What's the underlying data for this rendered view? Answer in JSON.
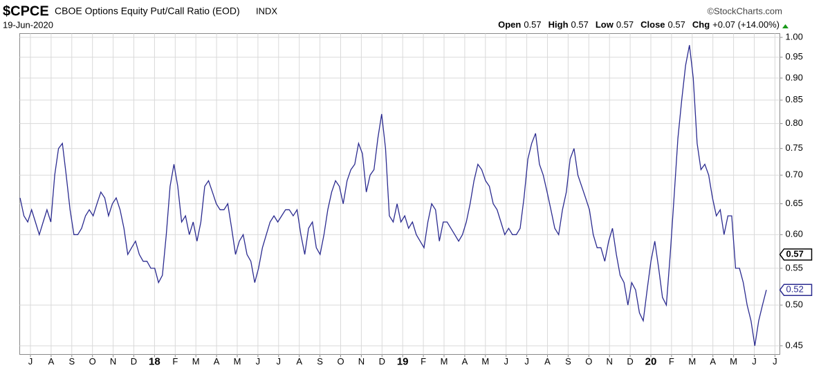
{
  "chart_data": {
    "type": "line",
    "symbol": "$CPCE",
    "title": "CBOE Options Equity Put/Call Ratio (EOD)",
    "exchange": "INDX",
    "source": "©StockCharts.com",
    "date": "19-Jun-2020",
    "quote": [
      {
        "name": "Open",
        "text": "0.57"
      },
      {
        "name": "High",
        "text": "0.57"
      },
      {
        "name": "Low",
        "text": "0.57"
      },
      {
        "name": "Close",
        "text": "0.57"
      },
      {
        "name": "Chg",
        "text": "+0.07 (+14.00%)"
      }
    ],
    "color": "#2a2a8f",
    "log_scale": true,
    "grid": true,
    "ylim": [
      0.44,
      1.01
    ],
    "yticks": [
      0.45,
      {
        "value": 0.5,
        "label": "0.50"
      },
      0.55,
      {
        "value": 0.6,
        "label": "0.60"
      },
      0.65,
      {
        "value": 0.7,
        "label": "0.70"
      },
      0.75,
      {
        "value": 0.8,
        "label": "0.80"
      },
      0.85,
      {
        "value": 0.9,
        "label": "0.90"
      },
      0.95,
      {
        "value": 1,
        "label": "1.00"
      }
    ],
    "xticks": [
      "J",
      "A",
      "S",
      "O",
      "N",
      "D",
      "18",
      "F",
      "M",
      "A",
      "M",
      "J",
      "J",
      "A",
      "S",
      "O",
      "N",
      "D",
      "19",
      "F",
      "M",
      "A",
      "M",
      "J",
      "J",
      "A",
      "S",
      "O",
      "N",
      "D",
      "20",
      "F",
      "M",
      "A",
      "M",
      "J",
      "J"
    ],
    "tags": [
      {
        "value": 0.57,
        "color": "#000000"
      },
      {
        "value": 0.52,
        "color": "#2a2a8f"
      }
    ],
    "values": [
      0.66,
      0.63,
      0.62,
      0.64,
      0.62,
      0.6,
      0.62,
      0.64,
      0.62,
      0.7,
      0.75,
      0.76,
      0.7,
      0.64,
      0.6,
      0.6,
      0.61,
      0.63,
      0.64,
      0.63,
      0.65,
      0.67,
      0.66,
      0.63,
      0.65,
      0.66,
      0.64,
      0.61,
      0.57,
      0.58,
      0.59,
      0.57,
      0.56,
      0.56,
      0.55,
      0.55,
      0.53,
      0.54,
      0.6,
      0.68,
      0.72,
      0.68,
      0.62,
      0.63,
      0.6,
      0.62,
      0.59,
      0.62,
      0.68,
      0.69,
      0.67,
      0.65,
      0.64,
      0.64,
      0.65,
      0.61,
      0.57,
      0.59,
      0.6,
      0.57,
      0.56,
      0.53,
      0.55,
      0.58,
      0.6,
      0.62,
      0.63,
      0.62,
      0.63,
      0.64,
      0.64,
      0.63,
      0.64,
      0.6,
      0.57,
      0.61,
      0.62,
      0.58,
      0.57,
      0.6,
      0.64,
      0.67,
      0.69,
      0.68,
      0.65,
      0.69,
      0.71,
      0.72,
      0.76,
      0.74,
      0.67,
      0.7,
      0.71,
      0.77,
      0.82,
      0.75,
      0.63,
      0.62,
      0.65,
      0.62,
      0.63,
      0.61,
      0.62,
      0.6,
      0.59,
      0.58,
      0.62,
      0.65,
      0.64,
      0.59,
      0.62,
      0.62,
      0.61,
      0.6,
      0.59,
      0.6,
      0.62,
      0.65,
      0.69,
      0.72,
      0.71,
      0.69,
      0.68,
      0.65,
      0.64,
      0.62,
      0.6,
      0.61,
      0.6,
      0.6,
      0.61,
      0.66,
      0.73,
      0.76,
      0.78,
      0.72,
      0.7,
      0.67,
      0.64,
      0.61,
      0.6,
      0.64,
      0.67,
      0.73,
      0.75,
      0.7,
      0.68,
      0.66,
      0.64,
      0.6,
      0.58,
      0.58,
      0.56,
      0.59,
      0.61,
      0.57,
      0.54,
      0.53,
      0.5,
      0.53,
      0.52,
      0.49,
      0.48,
      0.52,
      0.56,
      0.59,
      0.55,
      0.51,
      0.5,
      0.57,
      0.66,
      0.77,
      0.85,
      0.93,
      0.98,
      0.9,
      0.76,
      0.71,
      0.72,
      0.7,
      0.66,
      0.63,
      0.64,
      0.6,
      0.63,
      0.63,
      0.55,
      0.55,
      0.53,
      0.5,
      0.48,
      0.45,
      0.48,
      0.5,
      0.52
    ]
  }
}
